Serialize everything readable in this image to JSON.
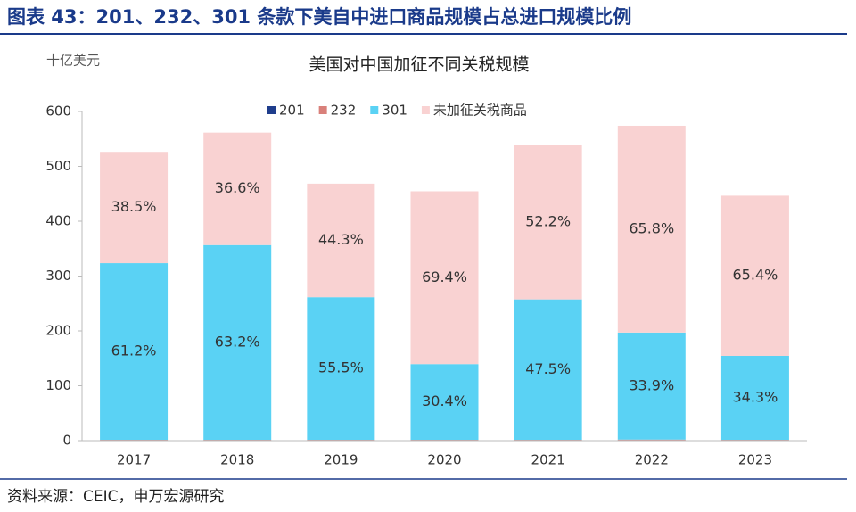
{
  "header": {
    "title": "图表 43：201、232、301 条款下美自中进口商品规模占总进口规模比例"
  },
  "chart_data": {
    "type": "stacked_bar",
    "title": "美国对中国加征不同关税规模",
    "y_label": "十亿美元",
    "categories": [
      "2017",
      "2018",
      "2019",
      "2020",
      "2021",
      "2022",
      "2023"
    ],
    "series": [
      {
        "name": "201",
        "color": "#1f3d8c",
        "values": [
          0.5,
          0.5,
          0.5,
          0.5,
          0.5,
          1,
          0.5
        ]
      },
      {
        "name": "232",
        "color": "#d9807a",
        "values": [
          1,
          1,
          1,
          1,
          1,
          1,
          1
        ]
      },
      {
        "name": "301",
        "color": "#5ad2f4",
        "values": [
          322,
          355,
          260,
          138,
          256,
          195,
          153
        ],
        "share_labels": [
          "61.2%",
          "63.2%",
          "55.5%",
          "30.4%",
          "47.5%",
          "33.9%",
          "34.3%"
        ]
      },
      {
        "name": "未加征关税商品",
        "color": "#f9d2d2",
        "values": [
          203,
          205,
          207,
          315,
          281,
          377,
          292
        ],
        "share_labels": [
          "38.5%",
          "36.6%",
          "44.3%",
          "69.4%",
          "52.2%",
          "65.8%",
          "65.4%"
        ]
      }
    ],
    "ylim": [
      0,
      600
    ],
    "yticks": [
      0,
      100,
      200,
      300,
      400,
      500,
      600
    ],
    "grid": false
  },
  "footer": {
    "source": "资料来源：CEIC，申万宏源研究"
  }
}
